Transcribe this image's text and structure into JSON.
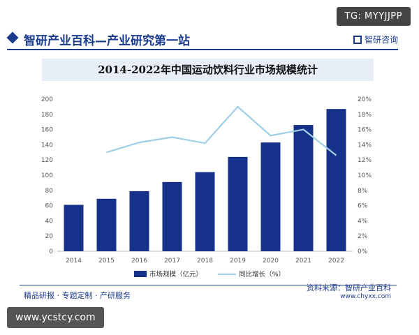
{
  "watermark_tag_top": "TG: MYYJJPP",
  "header": {
    "title": "智研产业百科—产业研究第一站",
    "logo_text": "智研咨询"
  },
  "footer": {
    "left": "精品研报 · 专题定制 · 产研服务",
    "source": "资料来源：智研产业百科",
    "url": "www.chyxx.com"
  },
  "watermark_tag_bottom": "www.ycstcy.com",
  "colors": {
    "bar": "#15318a",
    "line": "#9fcfe6",
    "brand": "#1a3a8c"
  },
  "chart_data": {
    "type": "bar",
    "title": "2014-2022年中国运动饮料行业市场规模统计",
    "categories": [
      "2014",
      "2015",
      "2016",
      "2017",
      "2018",
      "2019",
      "2020",
      "2021",
      "2022"
    ],
    "series": [
      {
        "name": "市场规模（亿元）",
        "type": "bar",
        "axis": "left",
        "values": [
          61,
          69,
          79,
          91,
          104,
          124,
          143,
          166,
          187
        ]
      },
      {
        "name": "同比增长（%）",
        "type": "line",
        "axis": "right",
        "values": [
          null,
          13.0,
          14.3,
          15.0,
          14.2,
          19.0,
          15.2,
          16.0,
          12.6
        ]
      }
    ],
    "ylim_left": [
      0,
      200
    ],
    "yticks_left": [
      "0",
      "20",
      "40",
      "60",
      "80",
      "100",
      "120",
      "140",
      "160",
      "180",
      "200"
    ],
    "ylim_right": [
      0,
      20
    ],
    "yticks_right": [
      "0%",
      "2%",
      "4%",
      "6%",
      "8%",
      "10%",
      "12%",
      "14%",
      "16%",
      "18%",
      "20%"
    ],
    "legend_position": "bottom"
  }
}
